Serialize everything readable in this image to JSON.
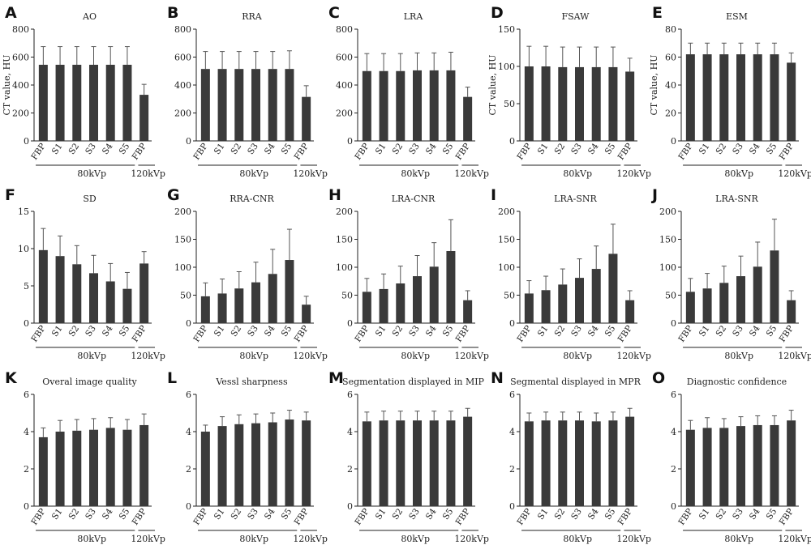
{
  "figure": {
    "category_labels": [
      "FBP",
      "S1",
      "S2",
      "S3",
      "S4",
      "S5",
      "FBP"
    ],
    "group_labels": [
      "80kVp",
      "120kVp"
    ],
    "bar_color": "#3a3a3a"
  },
  "chart_data": [
    {
      "panel": "A",
      "type": "bar",
      "title": "AO",
      "ylabel": "CT value, HU",
      "ylim": [
        0,
        800
      ],
      "yticks": [
        0,
        200,
        400,
        600,
        800
      ],
      "categories": [
        "FBP",
        "S1",
        "S2",
        "S3",
        "S4",
        "S5",
        "FBP"
      ],
      "values": [
        545,
        545,
        545,
        545,
        545,
        545,
        330
      ],
      "errors": [
        130,
        130,
        130,
        130,
        130,
        130,
        75
      ]
    },
    {
      "panel": "B",
      "type": "bar",
      "title": "RRA",
      "ylabel": "",
      "ylim": [
        0,
        800
      ],
      "yticks": [
        0,
        200,
        400,
        600,
        800
      ],
      "categories": [
        "FBP",
        "S1",
        "S2",
        "S3",
        "S4",
        "S5",
        "FBP"
      ],
      "values": [
        515,
        515,
        515,
        515,
        515,
        515,
        315
      ],
      "errors": [
        125,
        125,
        125,
        125,
        125,
        130,
        80
      ]
    },
    {
      "panel": "C",
      "type": "bar",
      "title": "LRA",
      "ylabel": "",
      "ylim": [
        0,
        800
      ],
      "yticks": [
        0,
        200,
        400,
        600,
        800
      ],
      "categories": [
        "FBP",
        "S1",
        "S2",
        "S3",
        "S4",
        "S5",
        "FBP"
      ],
      "values": [
        500,
        500,
        500,
        505,
        505,
        505,
        315
      ],
      "errors": [
        125,
        125,
        125,
        125,
        125,
        130,
        70
      ]
    },
    {
      "panel": "D",
      "type": "bar",
      "title": "FSAW",
      "ylabel": "CT value, HU",
      "ylim": [
        0,
        150
      ],
      "yticks": [
        0,
        50,
        100,
        150
      ],
      "categories": [
        "FBP",
        "S1",
        "S2",
        "S3",
        "S4",
        "S5",
        "FBP"
      ],
      "values": [
        100,
        100,
        99,
        99,
        99,
        99,
        93
      ],
      "errors": [
        27,
        27,
        27,
        27,
        27,
        27,
        18
      ]
    },
    {
      "panel": "E",
      "type": "bar",
      "title": "ESM",
      "ylabel": "CT value, HU",
      "ylim": [
        0,
        80
      ],
      "yticks": [
        0,
        20,
        40,
        60,
        80
      ],
      "categories": [
        "FBP",
        "S1",
        "S2",
        "S3",
        "S4",
        "S5",
        "FBP"
      ],
      "values": [
        62,
        62,
        62,
        62,
        62,
        62,
        56
      ],
      "errors": [
        8,
        8,
        8,
        8,
        8,
        8,
        7
      ]
    },
    {
      "panel": "F",
      "type": "bar",
      "title": "SD",
      "ylabel": "",
      "ylim": [
        0,
        15
      ],
      "yticks": [
        0,
        5,
        10,
        15
      ],
      "categories": [
        "FBP",
        "S1",
        "S2",
        "S3",
        "S4",
        "S5",
        "FBP"
      ],
      "values": [
        9.8,
        9.0,
        7.9,
        6.7,
        5.6,
        4.6,
        8.0
      ],
      "errors": [
        2.9,
        2.7,
        2.5,
        2.4,
        2.4,
        2.2,
        1.6
      ]
    },
    {
      "panel": "G",
      "type": "bar",
      "title": "RRA-CNR",
      "ylabel": "",
      "ylim": [
        0,
        200
      ],
      "yticks": [
        0,
        50,
        100,
        150,
        200
      ],
      "categories": [
        "FBP",
        "S1",
        "S2",
        "S3",
        "S4",
        "S5",
        "FBP"
      ],
      "values": [
        48,
        53,
        62,
        73,
        88,
        113,
        33
      ],
      "errors": [
        24,
        26,
        30,
        36,
        44,
        55,
        15
      ]
    },
    {
      "panel": "H",
      "type": "bar",
      "title": "LRA-CNR",
      "ylabel": "",
      "ylim": [
        0,
        200
      ],
      "yticks": [
        0,
        50,
        100,
        150,
        200
      ],
      "categories": [
        "FBP",
        "S1",
        "S2",
        "S3",
        "S4",
        "S5",
        "FBP"
      ],
      "values": [
        56,
        61,
        71,
        84,
        101,
        129,
        41
      ],
      "errors": [
        24,
        27,
        31,
        37,
        43,
        56,
        17
      ]
    },
    {
      "panel": "I",
      "type": "bar",
      "title": "LRA-SNR",
      "ylabel": "",
      "ylim": [
        0,
        200
      ],
      "yticks": [
        0,
        50,
        100,
        150,
        200
      ],
      "categories": [
        "FBP",
        "S1",
        "S2",
        "S3",
        "S4",
        "S5",
        "FBP"
      ],
      "values": [
        53,
        59,
        69,
        81,
        97,
        124,
        41
      ],
      "errors": [
        23,
        25,
        28,
        34,
        41,
        53,
        17
      ]
    },
    {
      "panel": "J",
      "type": "bar",
      "title": "LRA-SNR",
      "ylabel": "",
      "ylim": [
        0,
        200
      ],
      "yticks": [
        0,
        50,
        100,
        150,
        200
      ],
      "categories": [
        "FBP",
        "S1",
        "S2",
        "S3",
        "S4",
        "S5",
        "FBP"
      ],
      "values": [
        56,
        62,
        72,
        84,
        101,
        130,
        41
      ],
      "errors": [
        24,
        27,
        30,
        36,
        44,
        56,
        17
      ]
    },
    {
      "panel": "K",
      "type": "bar",
      "title": "Overal image quality",
      "ylabel": "",
      "ylim": [
        0,
        6
      ],
      "yticks": [
        0,
        2,
        4,
        6
      ],
      "categories": [
        "FBP",
        "S1",
        "S2",
        "S3",
        "S4",
        "S5",
        "FBP"
      ],
      "values": [
        3.7,
        4.0,
        4.05,
        4.1,
        4.2,
        4.1,
        4.35
      ],
      "errors": [
        0.5,
        0.6,
        0.6,
        0.6,
        0.55,
        0.55,
        0.6
      ]
    },
    {
      "panel": "L",
      "type": "bar",
      "title": "Vessl sharpness",
      "ylabel": "",
      "ylim": [
        0,
        6
      ],
      "yticks": [
        0,
        2,
        4,
        6
      ],
      "categories": [
        "FBP",
        "S1",
        "S2",
        "S3",
        "S4",
        "S5",
        "FBP"
      ],
      "values": [
        4.0,
        4.3,
        4.4,
        4.45,
        4.5,
        4.65,
        4.6
      ],
      "errors": [
        0.35,
        0.5,
        0.5,
        0.5,
        0.5,
        0.5,
        0.45
      ]
    },
    {
      "panel": "M",
      "type": "bar",
      "title": "Segmentation displayed in MIP",
      "ylabel": "",
      "ylim": [
        0,
        6
      ],
      "yticks": [
        0,
        2,
        4,
        6
      ],
      "categories": [
        "FBP",
        "S1",
        "S2",
        "S3",
        "S4",
        "S5",
        "FBP"
      ],
      "values": [
        4.55,
        4.6,
        4.6,
        4.6,
        4.6,
        4.6,
        4.8
      ],
      "errors": [
        0.5,
        0.5,
        0.5,
        0.5,
        0.5,
        0.5,
        0.45
      ]
    },
    {
      "panel": "N",
      "type": "bar",
      "title": "Segmental displayed in MPR",
      "ylabel": "",
      "ylim": [
        0,
        6
      ],
      "yticks": [
        0,
        2,
        4,
        6
      ],
      "categories": [
        "FBP",
        "S1",
        "S2",
        "S3",
        "S4",
        "S5",
        "FBP"
      ],
      "values": [
        4.55,
        4.6,
        4.6,
        4.6,
        4.55,
        4.6,
        4.8
      ],
      "errors": [
        0.45,
        0.45,
        0.45,
        0.45,
        0.45,
        0.45,
        0.45
      ]
    },
    {
      "panel": "O",
      "type": "bar",
      "title": "Diagnostic confidence",
      "ylabel": "",
      "ylim": [
        0,
        6
      ],
      "yticks": [
        0,
        2,
        4,
        6
      ],
      "categories": [
        "FBP",
        "S1",
        "S2",
        "S3",
        "S4",
        "S5",
        "FBP"
      ],
      "values": [
        4.1,
        4.2,
        4.2,
        4.3,
        4.35,
        4.35,
        4.6
      ],
      "errors": [
        0.5,
        0.55,
        0.5,
        0.5,
        0.5,
        0.5,
        0.55
      ]
    }
  ]
}
